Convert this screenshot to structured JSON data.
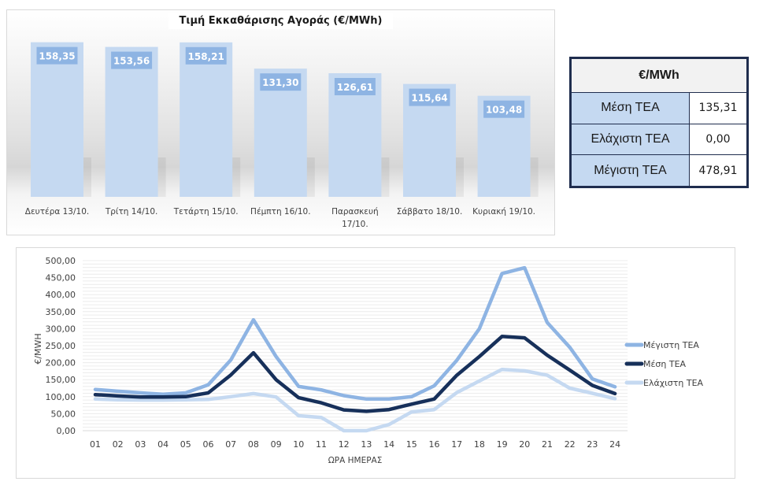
{
  "chart_data": [
    {
      "type": "bar",
      "title": "Τιμή Εκκαθάρισης Αγοράς (€/MWh)",
      "categories": [
        "Δευτέρα 13/10.",
        "Τρίτη 14/10.",
        "Τετάρτη 15/10.",
        "Πέμπτη 16/10.",
        "Παρασκευή 17/10.",
        "Σάββατο 18/10.",
        "Κυριακή 19/10."
      ],
      "category_lines": [
        [
          "Δευτέρα 13/10."
        ],
        [
          "Τρίτη 14/10."
        ],
        [
          "Τετάρτη 15/10."
        ],
        [
          "Πέμπτη 16/10."
        ],
        [
          "Παρασκευή",
          "17/10."
        ],
        [
          "Σάββατο 18/10."
        ],
        [
          "Κυριακή 19/10."
        ]
      ],
      "values": [
        158.35,
        153.56,
        158.21,
        131.3,
        126.61,
        115.64,
        103.48
      ],
      "data_labels": [
        "158,35",
        "153,56",
        "158,21",
        "131,30",
        "126,61",
        "115,64",
        "103,48"
      ],
      "xlabel": "",
      "ylabel": "",
      "ylim": [
        0,
        160
      ],
      "grid": false,
      "colors": {
        "bar": "#c5d9f1",
        "label_bg": "#8eb4e3",
        "label_text": "#ffffff"
      }
    },
    {
      "type": "line",
      "title": "",
      "x": [
        "01",
        "02",
        "03",
        "04",
        "05",
        "06",
        "07",
        "08",
        "09",
        "10",
        "11",
        "12",
        "13",
        "14",
        "15",
        "16",
        "17",
        "18",
        "19",
        "20",
        "21",
        "22",
        "23",
        "24"
      ],
      "series": [
        {
          "name": "Μέγιστη ΤΕΑ",
          "color": "#8eb4e3",
          "values": [
            121,
            116,
            111,
            107,
            111,
            135,
            208,
            326,
            218,
            130,
            120,
            103,
            93,
            93,
            100,
            132,
            207,
            300,
            462,
            479,
            318,
            245,
            152,
            129
          ]
        },
        {
          "name": "Μέση ΤΕΑ",
          "color": "#17305a",
          "values": [
            106,
            102,
            99,
            99,
            100,
            111,
            164,
            229,
            150,
            97,
            82,
            61,
            57,
            62,
            78,
            93,
            163,
            218,
            277,
            273,
            222,
            178,
            133,
            109
          ]
        },
        {
          "name": "Ελάχιστη ΤΕΑ",
          "color": "#c5d9f1",
          "values": [
            93,
            91,
            90,
            90,
            91,
            92,
            100,
            109,
            99,
            44,
            39,
            0,
            0,
            18,
            55,
            62,
            112,
            146,
            180,
            176,
            163,
            125,
            110,
            94
          ]
        }
      ],
      "yticks": [
        "0,00",
        "50,00",
        "100,00",
        "150,00",
        "200,00",
        "250,00",
        "300,00",
        "350,00",
        "400,00",
        "450,00",
        "500,00"
      ],
      "ylim": [
        0,
        500
      ],
      "xlabel": "ΩΡΑ ΗΜΕΡΑΣ",
      "ylabel": "€/MWH",
      "grid": true,
      "legend": "right"
    }
  ],
  "summary_table": {
    "header": "€/MWh",
    "rows": [
      {
        "label": "Μέση ΤΕΑ",
        "value": "135,31"
      },
      {
        "label": "Ελάχιστη ΤΕΑ",
        "value": "0,00"
      },
      {
        "label": "Μέγιστη ΤΕΑ",
        "value": "478,91"
      }
    ]
  }
}
